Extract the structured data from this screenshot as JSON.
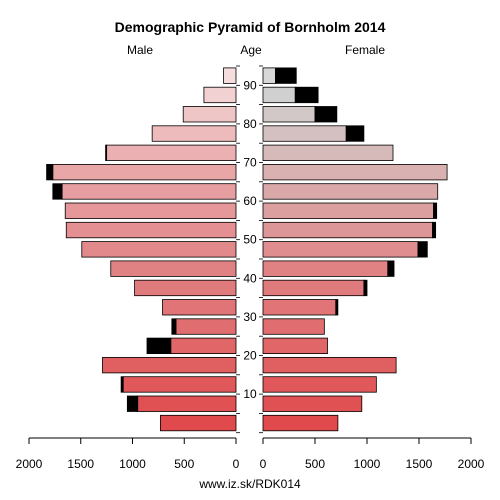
{
  "chart_data": {
    "type": "bar",
    "orientation": "population-pyramid",
    "title": "Demographic Pyramid of Bornholm 2014",
    "left_label": "Male",
    "center_label": "Age",
    "right_label": "Female",
    "footer": "www.iz.sk/RDK014",
    "age_ticks": [
      "10",
      "20",
      "30",
      "40",
      "50",
      "60",
      "70",
      "80",
      "90"
    ],
    "x_ticks_left": [
      "2000",
      "1500",
      "1000",
      "500",
      "0"
    ],
    "x_ticks_right": [
      "0",
      "500",
      "1000",
      "1500",
      "2000"
    ],
    "xlim": [
      0,
      2000
    ],
    "age_groups": [
      "0-4",
      "5-9",
      "10-14",
      "15-19",
      "20-24",
      "25-29",
      "30-34",
      "35-39",
      "40-44",
      "45-49",
      "50-54",
      "55-59",
      "60-64",
      "65-69",
      "70-74",
      "75-79",
      "80-84",
      "85-89",
      "90+"
    ],
    "series": [
      {
        "name": "Male",
        "values": [
          730,
          950,
          1090,
          1290,
          630,
          580,
          710,
          980,
          1210,
          1490,
          1640,
          1650,
          1680,
          1770,
          1250,
          810,
          510,
          310,
          120
        ]
      },
      {
        "name": "Male excess",
        "values": [
          0,
          100,
          20,
          0,
          230,
          40,
          0,
          0,
          0,
          0,
          0,
          0,
          90,
          60,
          10,
          0,
          0,
          0,
          0
        ]
      },
      {
        "name": "Female",
        "values": [
          720,
          950,
          1090,
          1280,
          620,
          590,
          700,
          970,
          1200,
          1490,
          1630,
          1640,
          1680,
          1770,
          1250,
          800,
          500,
          310,
          120
        ]
      },
      {
        "name": "Female excess",
        "values": [
          0,
          0,
          0,
          0,
          0,
          0,
          20,
          30,
          60,
          90,
          30,
          30,
          0,
          0,
          0,
          170,
          210,
          220,
          200
        ]
      }
    ],
    "colors": {
      "male": [
        "#e14a4d",
        "#e05153",
        "#e0585a",
        "#e05f61",
        "#e06668",
        "#e06d6f",
        "#e07476",
        "#e07b7d",
        "#e08284",
        "#e2898b",
        "#e49092",
        "#e59799",
        "#e79ea0",
        "#e9a6a7",
        "#ebb0b1",
        "#edbbbb",
        "#efc6c6",
        "#f1d1d1",
        "#f3dddd"
      ],
      "female": [
        "#e14a4d",
        "#e05153",
        "#e0585a",
        "#e05f61",
        "#e06668",
        "#e06d6f",
        "#e07476",
        "#e07b7d",
        "#e08284",
        "#df8d8f",
        "#dd9697",
        "#dc9fa0",
        "#daa8a9",
        "#d9b1b1",
        "#d6b9b9",
        "#d4c0c0",
        "#d2c8c8",
        "#d0d0d0",
        "#d8d8d8"
      ],
      "excess": "#000000"
    }
  }
}
